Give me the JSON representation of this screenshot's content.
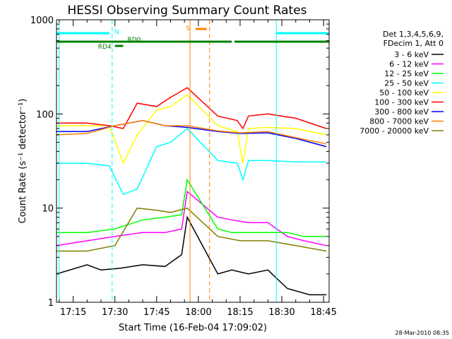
{
  "chart_data": {
    "type": "line",
    "title": "HESSI Observing Summary Count Rates",
    "xlabel": "Start Time (16-Feb-04 17:09:02)",
    "ylabel": "Count Rate (s⁻¹ detector⁻¹)",
    "yscale": "log",
    "xlim": [
      "17:09",
      "18:47"
    ],
    "ylim": [
      1,
      1000
    ],
    "x_ticks": [
      "17:15",
      "17:30",
      "17:45",
      "18:00",
      "18:15",
      "18:30",
      "18:45"
    ],
    "y_ticks": [
      "1",
      "10",
      "100",
      "1000"
    ],
    "footer": "28-Mar-2010 08:35",
    "legend_position": "right",
    "legend_header": [
      "Det 1,3,4,5,6,9,",
      "FDecim 1, Att 0"
    ],
    "series": [
      {
        "name": "3 - 6 keV",
        "color": "#000000",
        "x": [
          "17:09",
          "17:20",
          "17:25",
          "17:32",
          "17:40",
          "17:48",
          "17:54",
          "17:56",
          "18:07",
          "18:12",
          "18:18",
          "18:25",
          "18:32",
          "18:40",
          "18:46"
        ],
        "y": [
          2.0,
          2.5,
          2.2,
          2.3,
          2.5,
          2.4,
          3.2,
          8.0,
          2.0,
          2.2,
          2.0,
          2.2,
          1.4,
          1.2,
          1.2
        ]
      },
      {
        "name": "6 - 12 keV",
        "color": "#ff00ff",
        "x": [
          "17:09",
          "17:20",
          "17:30",
          "17:40",
          "17:48",
          "17:54",
          "17:56",
          "18:07",
          "18:12",
          "18:18",
          "18:25",
          "18:32",
          "18:38",
          "18:46"
        ],
        "y": [
          4.0,
          4.5,
          5.0,
          5.5,
          5.5,
          6.0,
          15.0,
          8.0,
          7.5,
          7.0,
          7.0,
          5.0,
          4.5,
          4.0
        ]
      },
      {
        "name": "12 - 25 keV",
        "color": "#00ff00",
        "x": [
          "17:09",
          "17:20",
          "17:30",
          "17:40",
          "17:48",
          "17:54",
          "17:56",
          "18:07",
          "18:12",
          "18:18",
          "18:25",
          "18:32",
          "18:38",
          "18:46"
        ],
        "y": [
          5.5,
          5.5,
          6.0,
          7.5,
          8.0,
          8.5,
          20.0,
          6.0,
          5.5,
          5.5,
          5.5,
          5.5,
          5.0,
          5.0
        ]
      },
      {
        "name": "25 - 50 keV",
        "color": "#00ffff",
        "x": [
          "17:09",
          "17:20",
          "17:28",
          "17:33",
          "17:38",
          "17:45",
          "17:50",
          "17:56",
          "18:07",
          "18:14",
          "18:16",
          "18:18",
          "18:25",
          "18:35",
          "18:46"
        ],
        "y": [
          30,
          30,
          28,
          14,
          16,
          45,
          50,
          70,
          32,
          30,
          20,
          32,
          32,
          31,
          31
        ]
      },
      {
        "name": "50 - 100 keV",
        "color": "#ffff00",
        "x": [
          "17:09",
          "17:20",
          "17:28",
          "17:33",
          "17:38",
          "17:45",
          "17:50",
          "17:56",
          "18:07",
          "18:14",
          "18:16",
          "18:18",
          "18:25",
          "18:35",
          "18:46"
        ],
        "y": [
          75,
          75,
          75,
          30,
          60,
          110,
          120,
          160,
          75,
          65,
          30,
          70,
          72,
          70,
          60
        ]
      },
      {
        "name": "100 - 300 keV",
        "color": "#ff0000",
        "x": [
          "17:09",
          "17:20",
          "17:28",
          "17:33",
          "17:38",
          "17:45",
          "17:50",
          "17:56",
          "18:07",
          "18:14",
          "18:16",
          "18:18",
          "18:25",
          "18:35",
          "18:46"
        ],
        "y": [
          80,
          80,
          75,
          70,
          130,
          120,
          150,
          190,
          95,
          85,
          70,
          95,
          100,
          90,
          70
        ]
      },
      {
        "name": "300 - 800 keV",
        "color": "#0000ff",
        "x": [
          "17:09",
          "17:20",
          "17:30",
          "17:40",
          "17:48",
          "17:56",
          "18:07",
          "18:15",
          "18:25",
          "18:35",
          "18:46"
        ],
        "y": [
          65,
          65,
          75,
          85,
          75,
          72,
          65,
          62,
          63,
          55,
          45
        ]
      },
      {
        "name": "800 - 7000 keV",
        "color": "#ff8000",
        "x": [
          "17:09",
          "17:20",
          "17:30",
          "17:40",
          "17:48",
          "17:56",
          "18:07",
          "18:15",
          "18:25",
          "18:35",
          "18:46"
        ],
        "y": [
          60,
          62,
          75,
          85,
          75,
          75,
          66,
          63,
          65,
          56,
          48
        ]
      },
      {
        "name": "7000 - 20000 keV",
        "color": "#808000",
        "x": [
          "17:09",
          "17:20",
          "17:30",
          "17:38",
          "17:45",
          "17:50",
          "17:56",
          "18:07",
          "18:15",
          "18:25",
          "18:35",
          "18:46"
        ],
        "y": [
          3.5,
          3.5,
          4.0,
          10.0,
          9.5,
          9.0,
          10.0,
          5.0,
          4.5,
          4.5,
          4.0,
          3.5
        ]
      }
    ],
    "flag_bars": [
      {
        "label": "",
        "color": "#00ffff",
        "segments": [
          [
            "17:09",
            "17:28"
          ],
          [
            "18:28",
            "18:47"
          ]
        ]
      },
      {
        "label": "",
        "color": "#008000",
        "segments": [
          [
            "17:09",
            "18:12"
          ],
          [
            "18:13",
            "18:47"
          ]
        ]
      },
      {
        "label": "RD4",
        "color": "#008000",
        "segments": [
          [
            "17:30",
            "17:33"
          ]
        ]
      },
      {
        "label": "RD0",
        "color": "#008000",
        "segments": [
          [
            "17:34",
            "17:39"
          ]
        ]
      },
      {
        "label": "S",
        "color": "#ff8000",
        "segments": [
          [
            "17:59",
            "18:03"
          ]
        ]
      }
    ],
    "event_lines": [
      {
        "label": "N",
        "color": "#00ffff",
        "style": "dashed",
        "x": "17:29"
      },
      {
        "label": "",
        "color": "#00ffff",
        "style": "solid",
        "x": "18:28"
      },
      {
        "label": "",
        "color": "#00ffff",
        "style": "dashed",
        "x": "18:47"
      },
      {
        "label": "",
        "color": "#00ffff",
        "style": "solid",
        "x": "17:10"
      },
      {
        "label": "",
        "color": "#ff8000",
        "style": "solid",
        "x": "17:57"
      },
      {
        "label": "",
        "color": "#ff8000",
        "style": "dashed",
        "x": "18:04"
      }
    ]
  }
}
